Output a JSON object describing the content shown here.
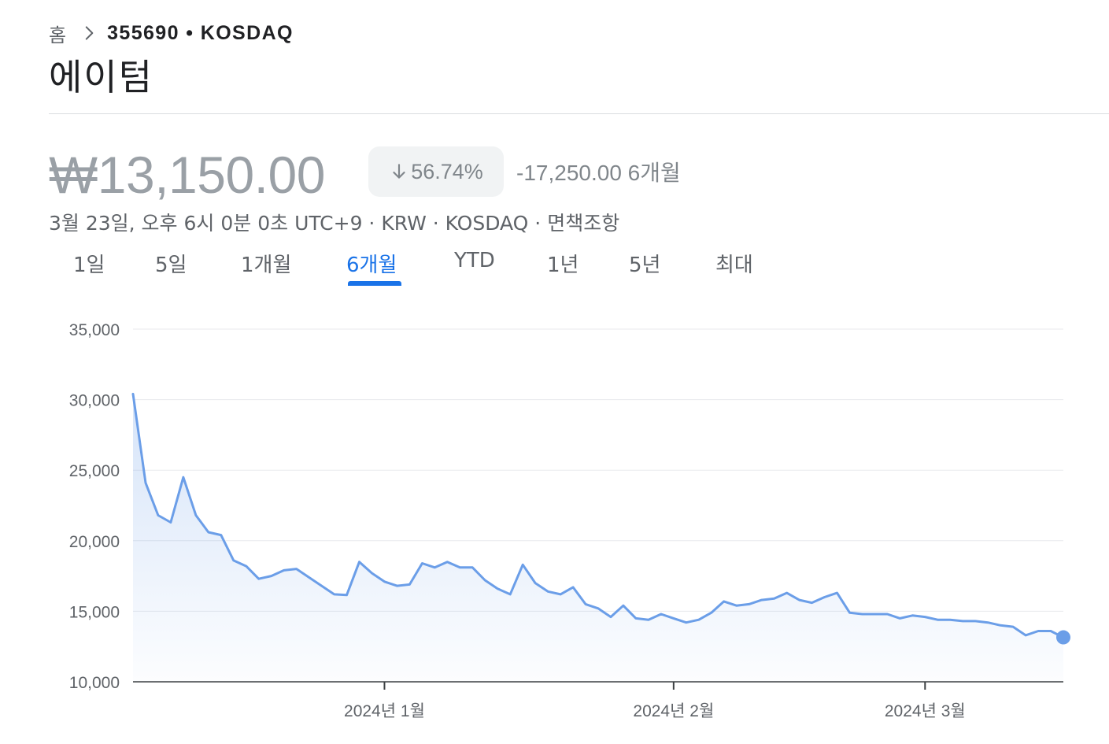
{
  "breadcrumb": {
    "home": "홈",
    "ticker": "355690 • KOSDAQ"
  },
  "stock": {
    "name": "에이텀",
    "price": "₩13,150.00",
    "change_pct": "56.74%",
    "change_abs": "-17,250.00 6개월",
    "meta_prefix": "3월 23일, 오후 6시 0분 0초 UTC+9 · KRW · KOSDAQ · ",
    "disclaimer": "면책조항"
  },
  "tabs": [
    "1일",
    "5일",
    "1개월",
    "6개월",
    "YTD",
    "1년",
    "5년",
    "최대"
  ],
  "active_tab": "6개월",
  "colors": {
    "line": "#6b9ee8",
    "accent": "#1a73e8",
    "grid": "#e8eaed"
  },
  "chart_data": {
    "type": "area",
    "y_ticks": [
      "35,000",
      "30,000",
      "25,000",
      "20,000",
      "15,000",
      "10,000"
    ],
    "ylim": [
      10000,
      35000
    ],
    "x_labels": [
      {
        "label": "2024년 1월",
        "index": 20
      },
      {
        "label": "2024년 2월",
        "index": 43
      },
      {
        "label": "2024년 3월",
        "index": 63
      }
    ],
    "values": [
      30400,
      24100,
      21800,
      21300,
      24500,
      21800,
      20600,
      20400,
      18600,
      18200,
      17300,
      17500,
      17900,
      18000,
      17400,
      16800,
      16200,
      16150,
      18500,
      17700,
      17100,
      16800,
      16900,
      18400,
      18100,
      18500,
      18100,
      18100,
      17200,
      16600,
      16200,
      18300,
      17000,
      16400,
      16200,
      16700,
      15500,
      15200,
      14600,
      15400,
      14500,
      14400,
      14800,
      14500,
      14200,
      14400,
      14900,
      15700,
      15400,
      15500,
      15800,
      15900,
      16300,
      15800,
      15600,
      16000,
      16300,
      14900,
      14800,
      14800,
      14800,
      14500,
      14700,
      14600,
      14400,
      14400,
      14300,
      14300,
      14200,
      14000,
      13900,
      13300,
      13600,
      13600,
      13150
    ],
    "last_value": 13150
  }
}
